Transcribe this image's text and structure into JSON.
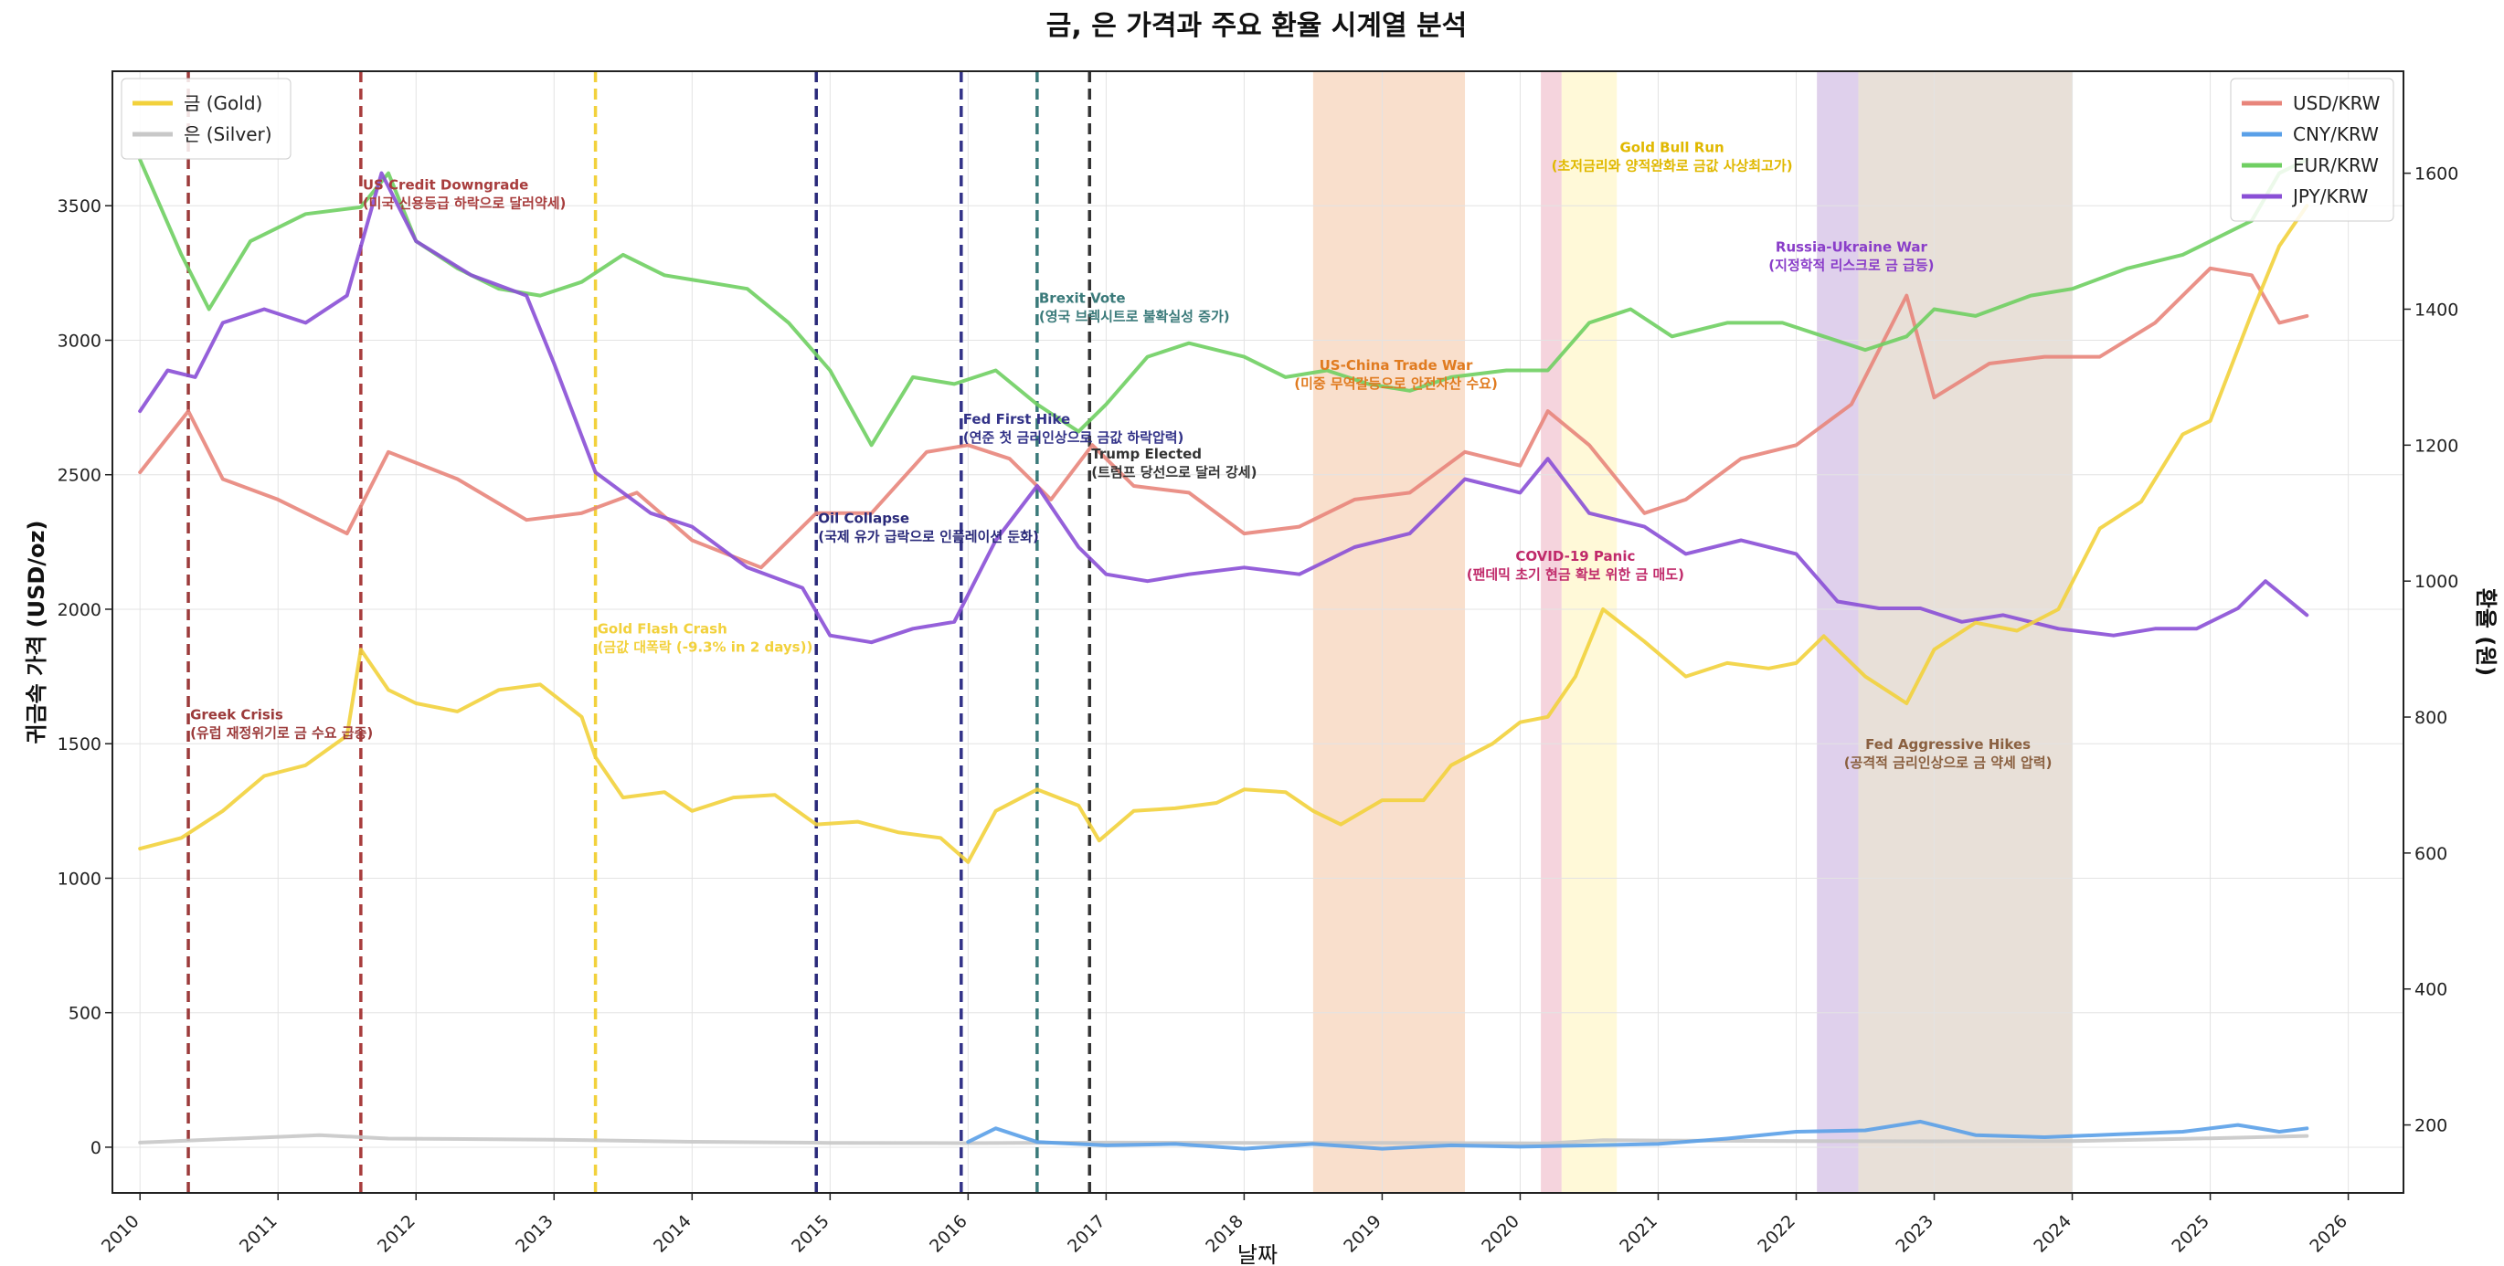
{
  "chart_data": {
    "type": "line",
    "title": "금, 은 가격과 주요 환율 시계열 분석",
    "xlabel": "날짜",
    "ylabel_left": "귀금속 가격 (USD/oz)",
    "ylabel_right": "환율 (원)",
    "xlim": [
      2009.8,
      2026.4
    ],
    "ylim_left": [
      -170,
      4000
    ],
    "ylim_right": [
      100,
      1750
    ],
    "x_ticks": [
      "2010",
      "2011",
      "2012",
      "2013",
      "2014",
      "2015",
      "2016",
      "2017",
      "2018",
      "2019",
      "2020",
      "2021",
      "2022",
      "2023",
      "2024",
      "2025",
      "2026"
    ],
    "y_ticks_left": [
      "0",
      "500",
      "1000",
      "1500",
      "2000",
      "2500",
      "3000",
      "3500"
    ],
    "y_ticks_right": [
      "200",
      "400",
      "600",
      "800",
      "1000",
      "1200",
      "1400",
      "1600"
    ],
    "grid": true,
    "legend_left": {
      "position": "top-left",
      "entries": [
        "금 (Gold)",
        "은 (Silver)"
      ]
    },
    "legend_right": {
      "position": "top-right",
      "entries": [
        "USD/KRW",
        "CNY/KRW",
        "EUR/KRW",
        "JPY/KRW"
      ]
    },
    "series": [
      {
        "name": "금 (Gold)",
        "axis": "left",
        "color": "#f2d13c",
        "x": [
          2010.0,
          2010.3,
          2010.6,
          2010.9,
          2011.2,
          2011.5,
          2011.6,
          2011.8,
          2012.0,
          2012.3,
          2012.6,
          2012.9,
          2013.2,
          2013.3,
          2013.5,
          2013.8,
          2014.0,
          2014.3,
          2014.6,
          2014.9,
          2015.2,
          2015.5,
          2015.8,
          2016.0,
          2016.2,
          2016.5,
          2016.8,
          2016.95,
          2017.2,
          2017.5,
          2017.8,
          2018.0,
          2018.3,
          2018.5,
          2018.7,
          2019.0,
          2019.3,
          2019.5,
          2019.8,
          2020.0,
          2020.2,
          2020.4,
          2020.6,
          2020.9,
          2021.2,
          2021.5,
          2021.8,
          2022.0,
          2022.2,
          2022.5,
          2022.8,
          2023.0,
          2023.3,
          2023.6,
          2023.9,
          2024.2,
          2024.5,
          2024.8,
          2025.0,
          2025.3,
          2025.5,
          2025.7
        ],
        "y": [
          1110,
          1150,
          1250,
          1380,
          1420,
          1530,
          1850,
          1700,
          1650,
          1620,
          1700,
          1720,
          1600,
          1450,
          1300,
          1320,
          1250,
          1300,
          1310,
          1200,
          1210,
          1170,
          1150,
          1060,
          1250,
          1330,
          1270,
          1140,
          1250,
          1260,
          1280,
          1330,
          1320,
          1250,
          1200,
          1290,
          1290,
          1420,
          1500,
          1580,
          1600,
          1750,
          2000,
          1880,
          1750,
          1800,
          1780,
          1800,
          1900,
          1750,
          1650,
          1850,
          1950,
          1920,
          2000,
          2300,
          2400,
          2650,
          2700,
          3100,
          3350,
          3500
        ]
      },
      {
        "name": "은 (Silver)",
        "axis": "left",
        "color": "#c8c8c8",
        "x": [
          2010.0,
          2011.3,
          2011.8,
          2013.0,
          2014.0,
          2015.0,
          2016.0,
          2017.0,
          2018.0,
          2019.0,
          2020.2,
          2020.6,
          2021.0,
          2022.0,
          2023.0,
          2024.0,
          2025.0,
          2025.7
        ],
        "y": [
          17,
          45,
          32,
          28,
          20,
          16,
          15,
          17,
          16,
          16,
          14,
          26,
          25,
          23,
          22,
          23,
          33,
          42
        ]
      },
      {
        "name": "USD/KRW",
        "axis": "right",
        "color": "#e8857b",
        "x": [
          2010.0,
          2010.35,
          2010.6,
          2011.0,
          2011.5,
          2011.8,
          2012.3,
          2012.8,
          2013.2,
          2013.6,
          2014.0,
          2014.5,
          2014.9,
          2015.3,
          2015.7,
          2016.0,
          2016.3,
          2016.6,
          2016.9,
          2017.2,
          2017.6,
          2018.0,
          2018.4,
          2018.8,
          2019.2,
          2019.6,
          2020.0,
          2020.2,
          2020.5,
          2020.9,
          2021.2,
          2021.6,
          2022.0,
          2022.4,
          2022.8,
          2023.0,
          2023.4,
          2023.8,
          2024.2,
          2024.6,
          2025.0,
          2025.3,
          2025.5,
          2025.7
        ],
        "y": [
          1160,
          1250,
          1150,
          1120,
          1070,
          1190,
          1150,
          1090,
          1100,
          1130,
          1060,
          1020,
          1100,
          1100,
          1190,
          1200,
          1180,
          1120,
          1200,
          1140,
          1130,
          1070,
          1080,
          1120,
          1130,
          1190,
          1170,
          1250,
          1200,
          1100,
          1120,
          1180,
          1200,
          1260,
          1420,
          1270,
          1320,
          1330,
          1330,
          1380,
          1460,
          1450,
          1380,
          1390
        ]
      },
      {
        "name": "CNY/KRW",
        "axis": "right",
        "color": "#5aa0e8",
        "x": [
          2016.0,
          2016.2,
          2016.5,
          2017.0,
          2017.5,
          2018.0,
          2018.5,
          2019.0,
          2019.5,
          2020.0,
          2020.5,
          2021.0,
          2021.5,
          2022.0,
          2022.5,
          2022.9,
          2023.3,
          2023.8,
          2024.3,
          2024.8,
          2025.2,
          2025.5,
          2025.7
        ],
        "y": [
          175,
          195,
          175,
          170,
          172,
          165,
          172,
          165,
          170,
          168,
          170,
          172,
          180,
          190,
          192,
          205,
          185,
          182,
          186,
          190,
          200,
          190,
          195
        ]
      },
      {
        "name": "EUR/KRW",
        "axis": "right",
        "color": "#6fcf62",
        "x": [
          2010.0,
          2010.3,
          2010.5,
          2010.8,
          2011.2,
          2011.6,
          2011.8,
          2012.0,
          2012.3,
          2012.6,
          2012.9,
          2013.2,
          2013.5,
          2013.8,
          2014.1,
          2014.4,
          2014.7,
          2015.0,
          2015.3,
          2015.6,
          2015.9,
          2016.2,
          2016.5,
          2016.8,
          2017.0,
          2017.3,
          2017.6,
          2018.0,
          2018.3,
          2018.6,
          2018.9,
          2019.2,
          2019.5,
          2019.9,
          2020.2,
          2020.5,
          2020.8,
          2021.1,
          2021.5,
          2021.9,
          2022.2,
          2022.5,
          2022.8,
          2023.0,
          2023.3,
          2023.7,
          2024.0,
          2024.4,
          2024.8,
          2025.0,
          2025.3,
          2025.5,
          2025.7
        ],
        "y": [
          1620,
          1480,
          1400,
          1500,
          1540,
          1550,
          1600,
          1500,
          1460,
          1430,
          1420,
          1440,
          1480,
          1450,
          1440,
          1430,
          1380,
          1310,
          1200,
          1300,
          1290,
          1310,
          1260,
          1220,
          1260,
          1330,
          1350,
          1330,
          1300,
          1310,
          1290,
          1280,
          1300,
          1310,
          1310,
          1380,
          1400,
          1360,
          1380,
          1380,
          1360,
          1340,
          1360,
          1400,
          1390,
          1420,
          1430,
          1460,
          1480,
          1500,
          1530,
          1600,
          1620
        ]
      },
      {
        "name": "JPY/KRW",
        "axis": "right",
        "color": "#8a4fd6",
        "x": [
          2010.0,
          2010.2,
          2010.4,
          2010.6,
          2010.9,
          2011.2,
          2011.5,
          2011.75,
          2012.0,
          2012.4,
          2012.8,
          2013.0,
          2013.3,
          2013.7,
          2014.0,
          2014.4,
          2014.8,
          2015.0,
          2015.3,
          2015.6,
          2015.9,
          2016.2,
          2016.5,
          2016.8,
          2017.0,
          2017.3,
          2017.6,
          2018.0,
          2018.4,
          2018.8,
          2019.2,
          2019.6,
          2020.0,
          2020.2,
          2020.5,
          2020.9,
          2021.2,
          2021.6,
          2022.0,
          2022.3,
          2022.6,
          2022.9,
          2023.2,
          2023.5,
          2023.9,
          2024.3,
          2024.6,
          2024.9,
          2025.2,
          2025.4,
          2025.7
        ],
        "y": [
          1250,
          1310,
          1300,
          1380,
          1400,
          1380,
          1420,
          1600,
          1500,
          1450,
          1420,
          1320,
          1160,
          1100,
          1080,
          1020,
          990,
          920,
          910,
          930,
          940,
          1060,
          1140,
          1050,
          1010,
          1000,
          1010,
          1020,
          1010,
          1050,
          1070,
          1150,
          1130,
          1180,
          1100,
          1080,
          1040,
          1060,
          1040,
          970,
          960,
          960,
          940,
          950,
          930,
          920,
          930,
          930,
          960,
          1000,
          950
        ]
      }
    ],
    "shaded_regions": [
      {
        "x0": 2018.5,
        "x1": 2019.6,
        "color": "#f2b98e"
      },
      {
        "x0": 2020.15,
        "x1": 2020.3,
        "color": "#e8a0b4"
      },
      {
        "x0": 2020.3,
        "x1": 2020.7,
        "color": "#fff2a8"
      },
      {
        "x0": 2022.15,
        "x1": 2022.45,
        "color": "#b797d4"
      },
      {
        "x0": 2022.45,
        "x1": 2024.0,
        "color": "#cdbaa8"
      }
    ],
    "events": [
      {
        "x": 2010.35,
        "color": "#9c3b3b",
        "title": "Greek Crisis",
        "desc": "(유럽 재정위기로 금 수요 급증)",
        "y": 1590
      },
      {
        "x": 2011.6,
        "color": "#a83d3d",
        "title": "US Credit Downgrade",
        "desc": "(미국 신용등급 하락으로 달러약세)",
        "y": 3560
      },
      {
        "x": 2013.3,
        "color": "#f2d13c",
        "title": "Gold Flash Crash",
        "desc": "(금값 대폭락 (-9.3% in 2 days))",
        "y": 1910
      },
      {
        "x": 2014.9,
        "color": "#2a2a7a",
        "title": "Oil Collapse",
        "desc": "(국제 유가 급락으로 인플레이션 둔화)",
        "y": 2320
      },
      {
        "x": 2015.95,
        "color": "#333388",
        "title": "Fed First Hike",
        "desc": "(연준 첫 금리인상으로 금값 하락압력)",
        "y": 2690
      },
      {
        "x": 2016.5,
        "color": "#3a7a7a",
        "title": "Brexit Vote",
        "desc": "(영국 브렉시트로 불확실성 증가)",
        "y": 3140
      },
      {
        "x": 2016.88,
        "color": "#333333",
        "title": "Trump Elected",
        "desc": "(트럼프 당선으로 달러 강세)",
        "y": 2560
      }
    ],
    "region_labels": [
      {
        "x": 2019.1,
        "color": "#e07b20",
        "title": "US-China Trade War",
        "desc": "(미중 무역갈등으로 안전자산 수요)",
        "y": 2890
      },
      {
        "x": 2021.1,
        "color": "#e0b800",
        "title": "Gold Bull Run",
        "desc": "(초저금리와 양적완화로 금값 사상최고가)",
        "y": 3700
      },
      {
        "x": 2020.4,
        "color": "#c02a6a",
        "title": "COVID-19 Panic",
        "desc": "(팬데믹 초기 현금 확보 위한 금 매도)",
        "y": 2180
      },
      {
        "x": 2022.4,
        "color": "#8a3ec9",
        "title": "Russia-Ukraine War",
        "desc": "(지정학적 리스크로 금 급등)",
        "y": 3330
      },
      {
        "x": 2023.1,
        "color": "#8a6040",
        "title": "Fed Aggressive Hikes",
        "desc": "(공격적 금리인상으로 금 약세 압력)",
        "y": 1480
      }
    ]
  }
}
